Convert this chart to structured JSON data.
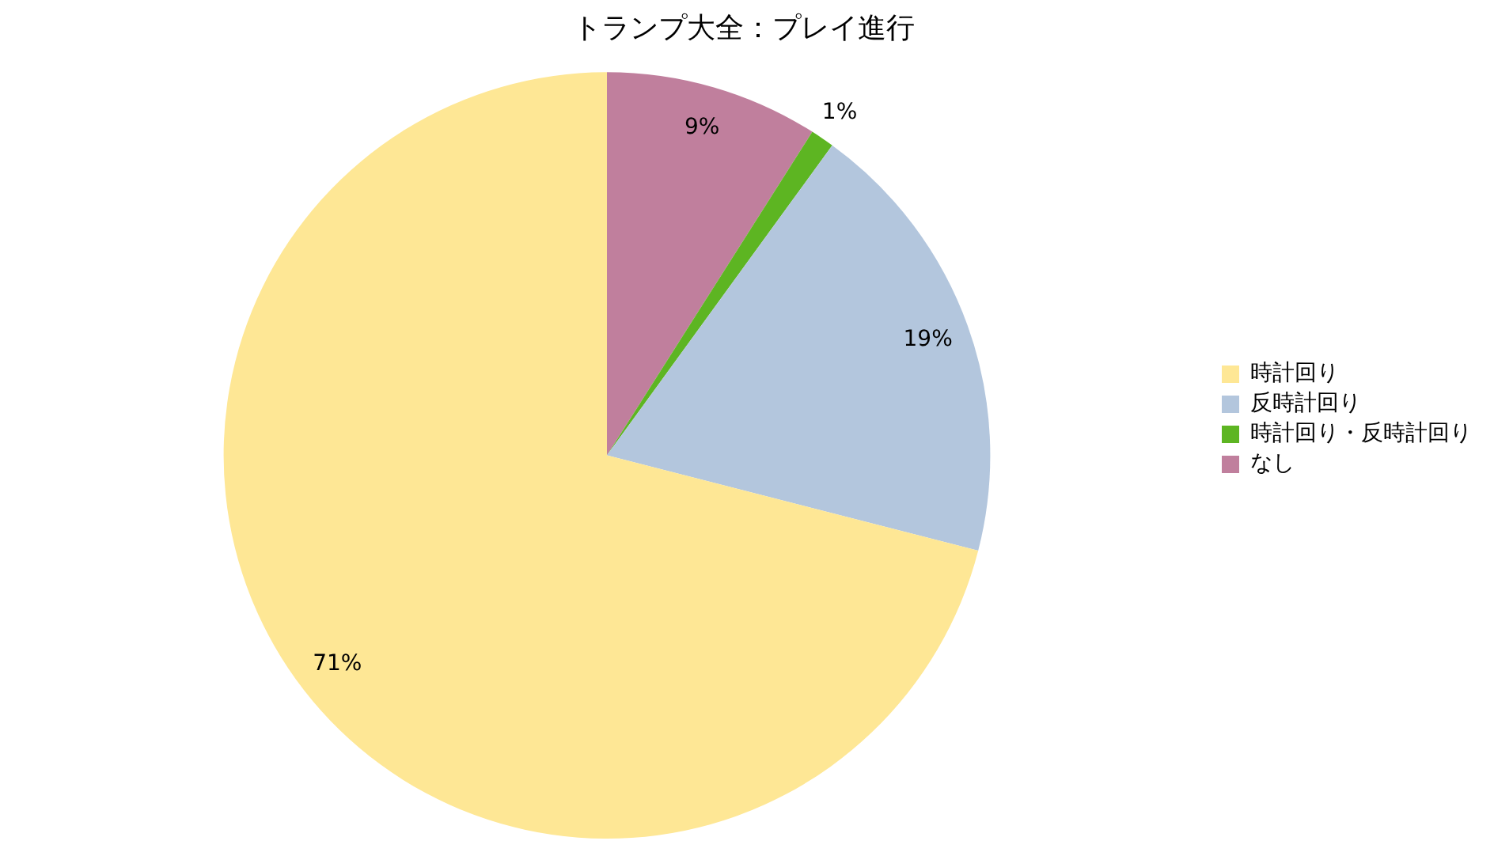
{
  "chart_data": {
    "type": "pie",
    "title": "トランプ大全：プレイ進行",
    "categories": [
      "時計回り",
      "反時計回り",
      "時計回り・反時計回り",
      "なし"
    ],
    "values": [
      71,
      19,
      1,
      9
    ],
    "colors": [
      "#fee795",
      "#b3c6dd",
      "#5db522",
      "#c07f9d"
    ],
    "value_labels": [
      "71%",
      "19%",
      "1%",
      "9%"
    ],
    "legend": "right"
  }
}
